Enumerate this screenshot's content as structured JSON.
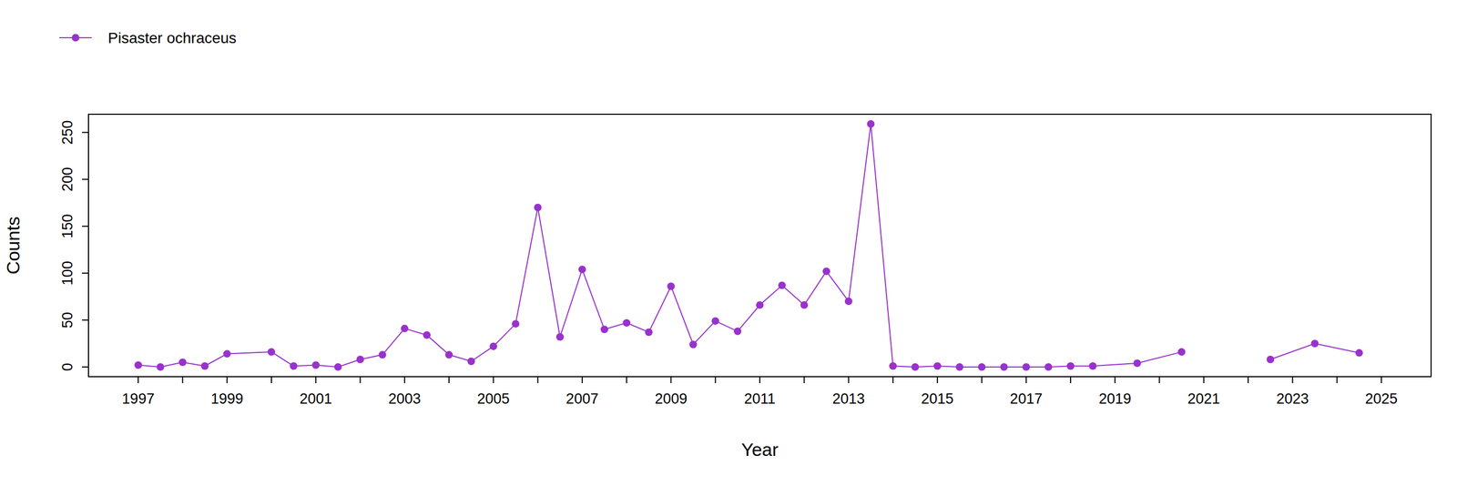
{
  "chart_data": {
    "type": "line",
    "x_label": "Year",
    "y_label": "Counts",
    "x": [
      1997,
      1997.5,
      1998,
      1998.5,
      1999,
      2000,
      2000.5,
      2001,
      2001.5,
      2002,
      2002.5,
      2003,
      2003.5,
      2004,
      2004.5,
      2005,
      2005.5,
      2006,
      2006.5,
      2007,
      2007.5,
      2008,
      2008.5,
      2009,
      2009.5,
      2010,
      2010.5,
      2011,
      2011.5,
      2012,
      2012.5,
      2013,
      2013.5,
      2014,
      2014.5,
      2015,
      2015.5,
      2016,
      2016.5,
      2017,
      2017.5,
      2018,
      2018.5,
      2019.5,
      2020.5,
      2021.5,
      2022.5,
      2023.5,
      2024.5
    ],
    "series": [
      {
        "name": "Pisaster ochraceus",
        "color": "#9932cc",
        "marker": "circle",
        "line_style": "solid",
        "values": [
          2,
          0,
          5,
          1,
          14,
          16,
          1,
          2,
          0,
          8,
          13,
          41,
          34,
          13,
          6,
          22,
          46,
          170,
          32,
          104,
          40,
          47,
          37,
          86,
          24,
          49,
          38,
          66,
          87,
          66,
          102,
          70,
          259,
          1,
          0,
          1,
          0,
          0,
          0,
          0,
          0,
          1,
          1,
          4,
          16,
          null,
          8,
          25,
          15
        ]
      }
    ],
    "xlim": [
      1995.88,
      2026.12
    ],
    "xticks": [
      1997,
      1999,
      2001,
      2003,
      2005,
      2007,
      2009,
      2011,
      2013,
      2015,
      2017,
      2019,
      2021,
      2023,
      2025
    ],
    "ylim": [
      -10.36,
      269.36
    ],
    "yticks": [
      0,
      50,
      100,
      150,
      200,
      250
    ],
    "grid": false,
    "legend": "top-left"
  }
}
